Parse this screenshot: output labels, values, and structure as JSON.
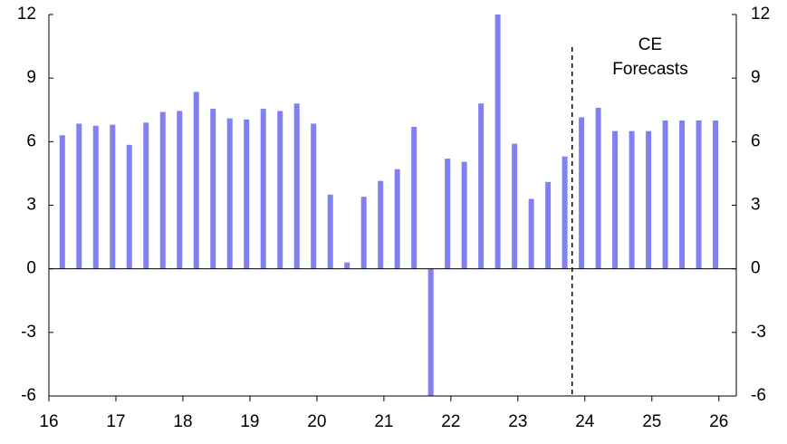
{
  "chart_data": {
    "type": "bar",
    "x": [
      16.2,
      16.45,
      16.7,
      16.95,
      17.2,
      17.45,
      17.7,
      17.95,
      18.2,
      18.45,
      18.7,
      18.95,
      19.2,
      19.45,
      19.7,
      19.95,
      20.2,
      20.45,
      20.7,
      20.95,
      21.2,
      21.45,
      21.7,
      21.95,
      22.2,
      22.45,
      22.7,
      22.95,
      23.2,
      23.45,
      23.7,
      23.95,
      24.2,
      24.45,
      24.7,
      24.95,
      25.2,
      25.45,
      25.7,
      25.95
    ],
    "values": [
      6.3,
      6.85,
      6.75,
      6.8,
      5.85,
      6.9,
      7.4,
      7.45,
      8.35,
      7.55,
      7.1,
      7.05,
      7.55,
      7.45,
      7.8,
      6.85,
      3.5,
      0.3,
      3.4,
      4.15,
      4.7,
      6.7,
      -6,
      5.2,
      5.05,
      7.8,
      12,
      5.9,
      3.3,
      4.1,
      5.3,
      7.15,
      7.6,
      6.5,
      6.5,
      6.5,
      7.0,
      7.0,
      7.0,
      7.0
    ],
    "color": "#8080f4",
    "xlim": [
      16,
      26.26
    ],
    "xticks": [
      16,
      17,
      18,
      19,
      20,
      21,
      22,
      23,
      24,
      25,
      26
    ],
    "ylim": [
      -6,
      12
    ],
    "yticks": [
      -6,
      -3,
      0,
      3,
      6,
      9,
      12
    ],
    "y2lim": [
      -6,
      12
    ],
    "y2ticks": [
      -6,
      -3,
      0,
      3,
      6,
      9,
      12
    ],
    "forecast_start": 23.81,
    "annotation": [
      "CE",
      "Forecasts"
    ]
  }
}
